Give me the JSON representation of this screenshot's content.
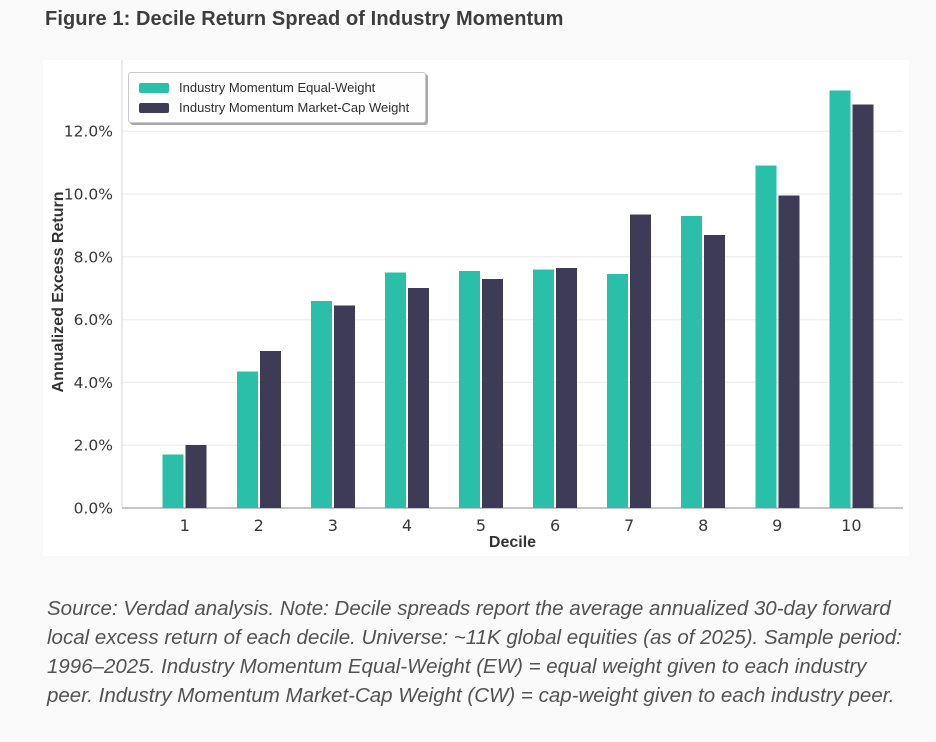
{
  "page": {
    "title": "Figure 1: Decile Return Spread of Industry Momentum"
  },
  "chart_data": {
    "type": "bar",
    "title": "Figure 1: Decile Return Spread of Industry Momentum",
    "xlabel": "Decile",
    "ylabel": "Annualized Excess Return",
    "categories": [
      "1",
      "2",
      "3",
      "4",
      "5",
      "6",
      "7",
      "8",
      "9",
      "10"
    ],
    "series": [
      {
        "name": "Industry Momentum Equal-Weight",
        "color": "#2abfa8",
        "values": [
          1.7,
          4.35,
          6.6,
          7.5,
          7.55,
          7.6,
          7.45,
          9.3,
          10.9,
          13.3
        ]
      },
      {
        "name": "Industry Momentum Market-Cap Weight",
        "color": "#3d3b56",
        "values": [
          2.0,
          5.0,
          6.45,
          7.0,
          7.3,
          7.65,
          9.35,
          8.7,
          9.95,
          12.85
        ]
      }
    ],
    "value_unit": "percent",
    "ylim": [
      0,
      14.3
    ],
    "yticks": [
      0,
      2,
      4,
      6,
      8,
      10,
      12
    ],
    "ytick_labels": [
      "0.0%",
      "2.0%",
      "4.0%",
      "6.0%",
      "8.0%",
      "10.0%",
      "12.0%"
    ],
    "grid": true,
    "legend_position": "top-left"
  },
  "footer": {
    "text": "Source: Verdad analysis. Note: Decile spreads report the average annualized 30-day forward local excess return of each decile. Universe: ~11K global equities (as of 2025). Sample period: 1996–2025. Industry Momentum Equal-Weight (EW) = equal weight given to each industry peer. Industry Momentum Market-Cap Weight (CW) = cap-weight given to each industry peer."
  },
  "colors": {
    "page_background": "#fafafa",
    "panel_background": "#ffffff",
    "gridline": "#f1f0f1",
    "axis_line": "#bdbdbd",
    "tick_label": "#373737",
    "series_equal_weight": "#2abfa8",
    "series_market_cap": "#3d3b56"
  }
}
